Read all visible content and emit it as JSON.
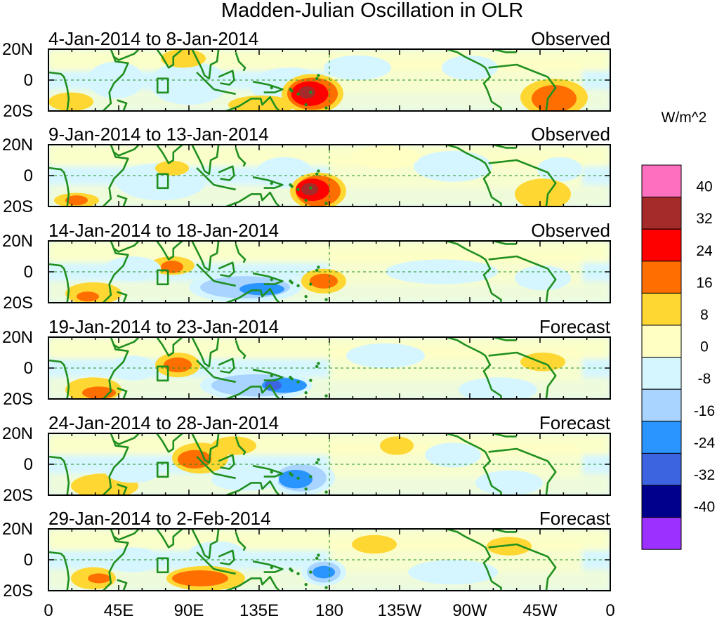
{
  "title": "Madden-Julian Oscillation in OLR",
  "units_label": "W/m^2",
  "y_ticks": [
    "20N",
    "0",
    "20S"
  ],
  "x_ticks": [
    "0",
    "45E",
    "90E",
    "135E",
    "180",
    "135W",
    "90W",
    "45W",
    "0"
  ],
  "panels": [
    {
      "dates": "4-Jan-2014 to 8-Jan-2014",
      "status": "Observed"
    },
    {
      "dates": "9-Jan-2014 to 13-Jan-2014",
      "status": "Observed"
    },
    {
      "dates": "14-Jan-2014 to 18-Jan-2014",
      "status": "Observed"
    },
    {
      "dates": "19-Jan-2014 to 23-Jan-2014",
      "status": "Forecast"
    },
    {
      "dates": "24-Jan-2014 to 28-Jan-2014",
      "status": "Forecast"
    },
    {
      "dates": "29-Jan-2014 to 2-Feb-2014",
      "status": "Forecast"
    }
  ],
  "colorbar": {
    "labels": [
      "40",
      "32",
      "24",
      "16",
      "8",
      "0",
      "-8",
      "-16",
      "-24",
      "-32",
      "-40"
    ],
    "colors": [
      "#ff6fc0",
      "#a52a2a",
      "#ff0000",
      "#ff6e00",
      "#ffd733",
      "#ffffc4",
      "#d6f6ff",
      "#a8d4ff",
      "#2b95ff",
      "#3c64e0",
      "#00008c",
      "#9b30ff"
    ]
  },
  "colors": {
    "coast": "#1f8f1f",
    "frame": "#000000",
    "dashed": "#1f8f1f"
  }
}
